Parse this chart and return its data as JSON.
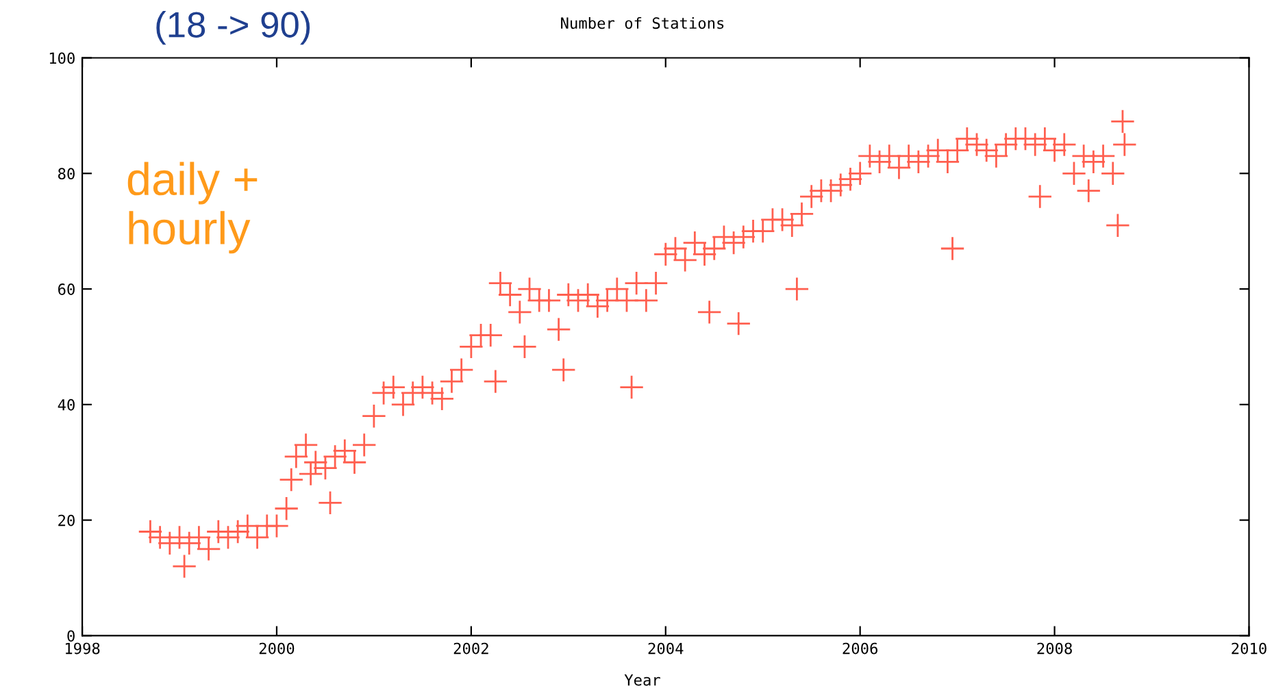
{
  "chart_data": {
    "type": "scatter",
    "title": "Number of Stations",
    "xlabel": "Year",
    "annotations": [
      "(18 -> 90)",
      "daily +\nhourly"
    ],
    "xlim": [
      1998,
      2010
    ],
    "xticks": [
      1998,
      2000,
      2002,
      2004,
      2006,
      2008,
      2010
    ],
    "ylim": [
      0,
      100
    ],
    "yticks": [
      0,
      20,
      40,
      60,
      80,
      100
    ],
    "grid": false,
    "legend": false,
    "marker": "cross",
    "series": [
      {
        "color": "#ff5f4f",
        "x": [
          1998.7,
          1998.8,
          1998.9,
          1999.0,
          1999.05,
          1999.1,
          1999.2,
          1999.3,
          1999.4,
          1999.5,
          1999.6,
          1999.7,
          1999.8,
          1999.9,
          2000.0,
          2000.1,
          2000.15,
          2000.2,
          2000.3,
          2000.35,
          2000.4,
          2000.5,
          2000.55,
          2000.6,
          2000.7,
          2000.8,
          2000.9,
          2001.0,
          2001.1,
          2001.2,
          2001.3,
          2001.4,
          2001.5,
          2001.6,
          2001.7,
          2001.8,
          2001.9,
          2002.0,
          2002.1,
          2002.2,
          2002.25,
          2002.3,
          2002.4,
          2002.5,
          2002.55,
          2002.6,
          2002.7,
          2002.8,
          2002.9,
          2002.95,
          2003.0,
          2003.1,
          2003.2,
          2003.3,
          2003.4,
          2003.5,
          2003.6,
          2003.65,
          2003.7,
          2003.8,
          2003.9,
          2004.0,
          2004.1,
          2004.2,
          2004.3,
          2004.4,
          2004.45,
          2004.5,
          2004.6,
          2004.7,
          2004.75,
          2004.8,
          2004.9,
          2005.0,
          2005.1,
          2005.2,
          2005.3,
          2005.35,
          2005.4,
          2005.5,
          2005.6,
          2005.7,
          2005.8,
          2005.9,
          2006.0,
          2006.1,
          2006.2,
          2006.3,
          2006.4,
          2006.5,
          2006.6,
          2006.7,
          2006.8,
          2006.9,
          2006.95,
          2007.0,
          2007.1,
          2007.2,
          2007.3,
          2007.4,
          2007.5,
          2007.6,
          2007.7,
          2007.8,
          2007.85,
          2007.9,
          2008.0,
          2008.1,
          2008.2,
          2008.3,
          2008.35,
          2008.4,
          2008.5,
          2008.6,
          2008.65,
          2008.7,
          2008.72
        ],
        "values": [
          18,
          17,
          16,
          17,
          12,
          16,
          17,
          15,
          18,
          17,
          18,
          19,
          17,
          19,
          19,
          22,
          27,
          31,
          33,
          28,
          30,
          29,
          23,
          31,
          32,
          30,
          33,
          38,
          42,
          43,
          40,
          42,
          43,
          42,
          41,
          44,
          46,
          50,
          52,
          52,
          44,
          61,
          59,
          56,
          50,
          60,
          58,
          58,
          53,
          46,
          59,
          58,
          59,
          57,
          58,
          60,
          58,
          43,
          61,
          58,
          61,
          66,
          67,
          65,
          68,
          66,
          56,
          67,
          69,
          68,
          54,
          69,
          70,
          70,
          72,
          72,
          71,
          60,
          73,
          76,
          77,
          77,
          78,
          79,
          80,
          83,
          82,
          83,
          81,
          83,
          82,
          83,
          84,
          82,
          67,
          84,
          86,
          85,
          84,
          83,
          85,
          86,
          86,
          85,
          76,
          86,
          84,
          85,
          80,
          83,
          77,
          82,
          83,
          80,
          71,
          89,
          85
        ]
      }
    ]
  }
}
